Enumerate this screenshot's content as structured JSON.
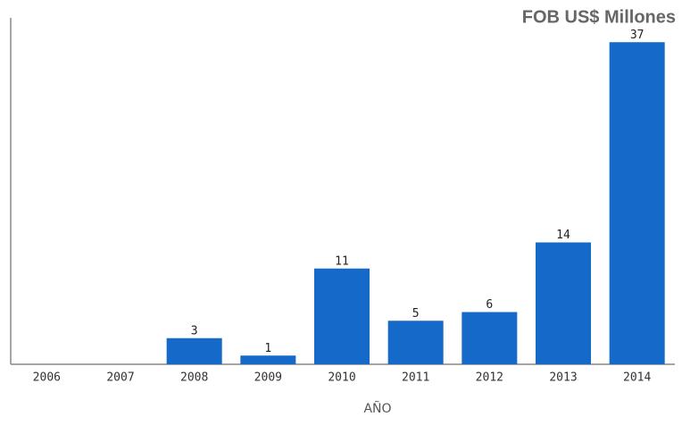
{
  "chart_data": {
    "type": "bar",
    "title": "FOB US$ Millones",
    "x_label": "AÑO",
    "categories": [
      "2006",
      "2007",
      "2008",
      "2009",
      "2010",
      "2011",
      "2012",
      "2013",
      "2014"
    ],
    "values": [
      null,
      null,
      3,
      1,
      11,
      5,
      6,
      14,
      37
    ],
    "color": "#1469c9",
    "ylim": [
      0,
      40
    ],
    "grid": false
  }
}
